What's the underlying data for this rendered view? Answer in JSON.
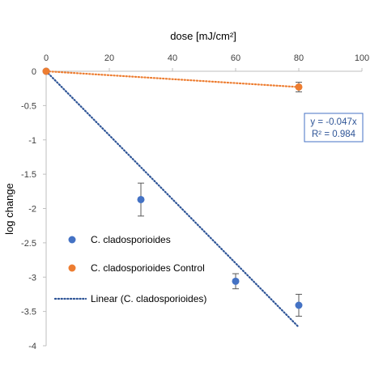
{
  "chart_data": {
    "type": "scatter",
    "xlabel": "dose [mJ/cm²]",
    "ylabel": "log change",
    "xlim": [
      0,
      100
    ],
    "ylim": [
      -4,
      0
    ],
    "x_ticks": [
      0,
      20,
      40,
      60,
      80,
      100
    ],
    "y_ticks": [
      0,
      -0.5,
      -1,
      -1.5,
      -2,
      -2.5,
      -3,
      -3.5,
      -4
    ],
    "x_axis_position": "top",
    "grid": false,
    "series": [
      {
        "name": "C. cladosporioides",
        "color": "#4472C4",
        "points": [
          {
            "x": 0,
            "y": 0,
            "err": 0
          },
          {
            "x": 30,
            "y": -1.87,
            "err": 0.24
          },
          {
            "x": 60,
            "y": -3.06,
            "err": 0.11
          },
          {
            "x": 80,
            "y": -3.41,
            "err": 0.16
          }
        ]
      },
      {
        "name": "C. cladosporioides Control",
        "color": "#ED7D31",
        "points": [
          {
            "x": 0,
            "y": 0,
            "err": 0
          },
          {
            "x": 80,
            "y": -0.23,
            "err": 0.07
          }
        ]
      }
    ],
    "trendlines": [
      {
        "name": "Linear (C. cladosporioides)",
        "color": "#2F5597",
        "x": [
          0,
          80
        ],
        "y": [
          0,
          -3.73
        ],
        "style": "dotted",
        "in_legend": true
      },
      {
        "name": "",
        "color": "#ED7D31",
        "x": [
          0,
          80
        ],
        "y": [
          0,
          -0.23
        ],
        "style": "dotted",
        "in_legend": false
      }
    ],
    "annotation": {
      "lines": [
        "y = -0.047x",
        "R² = 0.984"
      ],
      "color": "#2F5597",
      "border_color": "#4472C4"
    },
    "legend": {
      "placement": "lower-left",
      "entries": [
        {
          "label": "C. cladosporioides",
          "marker": "circle",
          "color": "#4472C4"
        },
        {
          "label": "C. cladosporioides Control",
          "marker": "circle",
          "color": "#ED7D31"
        },
        {
          "label": "Linear (C. cladosporioides)",
          "marker": "dotted-line",
          "color": "#2F5597"
        }
      ]
    }
  }
}
